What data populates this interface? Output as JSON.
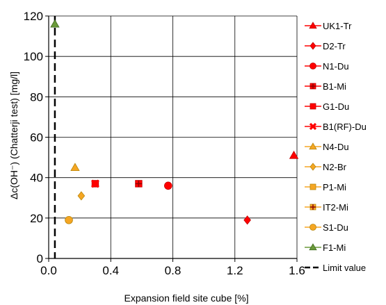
{
  "chart_data": {
    "type": "scatter",
    "xlabel": "Expansion field site cube [%]",
    "ylabel": "Δc(OH⁻) (Chatterji test) [mg/l]",
    "xlim": [
      0,
      1.6
    ],
    "ylim": [
      0,
      120
    ],
    "x_ticks": [
      "0.0",
      "0.4",
      "0.8",
      "1.2",
      "1.6"
    ],
    "y_ticks": [
      "0",
      "20",
      "40",
      "60",
      "80",
      "100",
      "120"
    ],
    "grid": true,
    "legend_position": "right",
    "series": [
      {
        "name": "UK1-Tr",
        "marker": "triangle",
        "color": "#ff0000",
        "edge": "#c00000",
        "points": [
          [
            1.58,
            51
          ]
        ]
      },
      {
        "name": "D2-Tr",
        "marker": "diamond",
        "color": "#ff0000",
        "edge": "#c00000",
        "points": [
          [
            1.28,
            19
          ]
        ]
      },
      {
        "name": "N1-Du",
        "marker": "circle",
        "color": "#ff0000",
        "edge": "#c00000",
        "points": [
          [
            0.77,
            36
          ]
        ]
      },
      {
        "name": "B1-Mi",
        "marker": "plus",
        "color": "#ff0000",
        "edge": "#c00000",
        "points": [
          [
            0.58,
            37
          ]
        ]
      },
      {
        "name": "G1-Du",
        "marker": "square",
        "color": "#ff0000",
        "edge": "#c00000",
        "points": [
          [
            0.3,
            37
          ]
        ]
      },
      {
        "name": "B1(RF)-Du",
        "marker": "cross",
        "color": "#ff0000",
        "edge": "#c00000",
        "points": [
          [
            0.3,
            37
          ]
        ]
      },
      {
        "name": "N4-Du",
        "marker": "triangle",
        "color": "#f5a623",
        "edge": "#b8860b",
        "points": [
          [
            0.17,
            45
          ]
        ]
      },
      {
        "name": "N2-Br",
        "marker": "diamond",
        "color": "#f5a623",
        "edge": "#b8860b",
        "points": [
          [
            0.21,
            31
          ]
        ]
      },
      {
        "name": "P1-Mi",
        "marker": "square",
        "color": "#f5a623",
        "edge": "#b8860b",
        "points": []
      },
      {
        "name": "IT2-Mi",
        "marker": "plus",
        "color": "#f5a623",
        "edge": "#b8860b",
        "points": []
      },
      {
        "name": "S1-Du",
        "marker": "circle",
        "color": "#f5a623",
        "edge": "#b8860b",
        "points": [
          [
            0.13,
            19
          ]
        ]
      },
      {
        "name": "F1-Mi",
        "marker": "triangle",
        "color": "#6b9a3a",
        "edge": "#3f6b1f",
        "points": [
          [
            0.04,
            116
          ]
        ]
      }
    ],
    "limit_line": {
      "name": "Limit value",
      "x": 0.04,
      "color": "#000000"
    }
  }
}
